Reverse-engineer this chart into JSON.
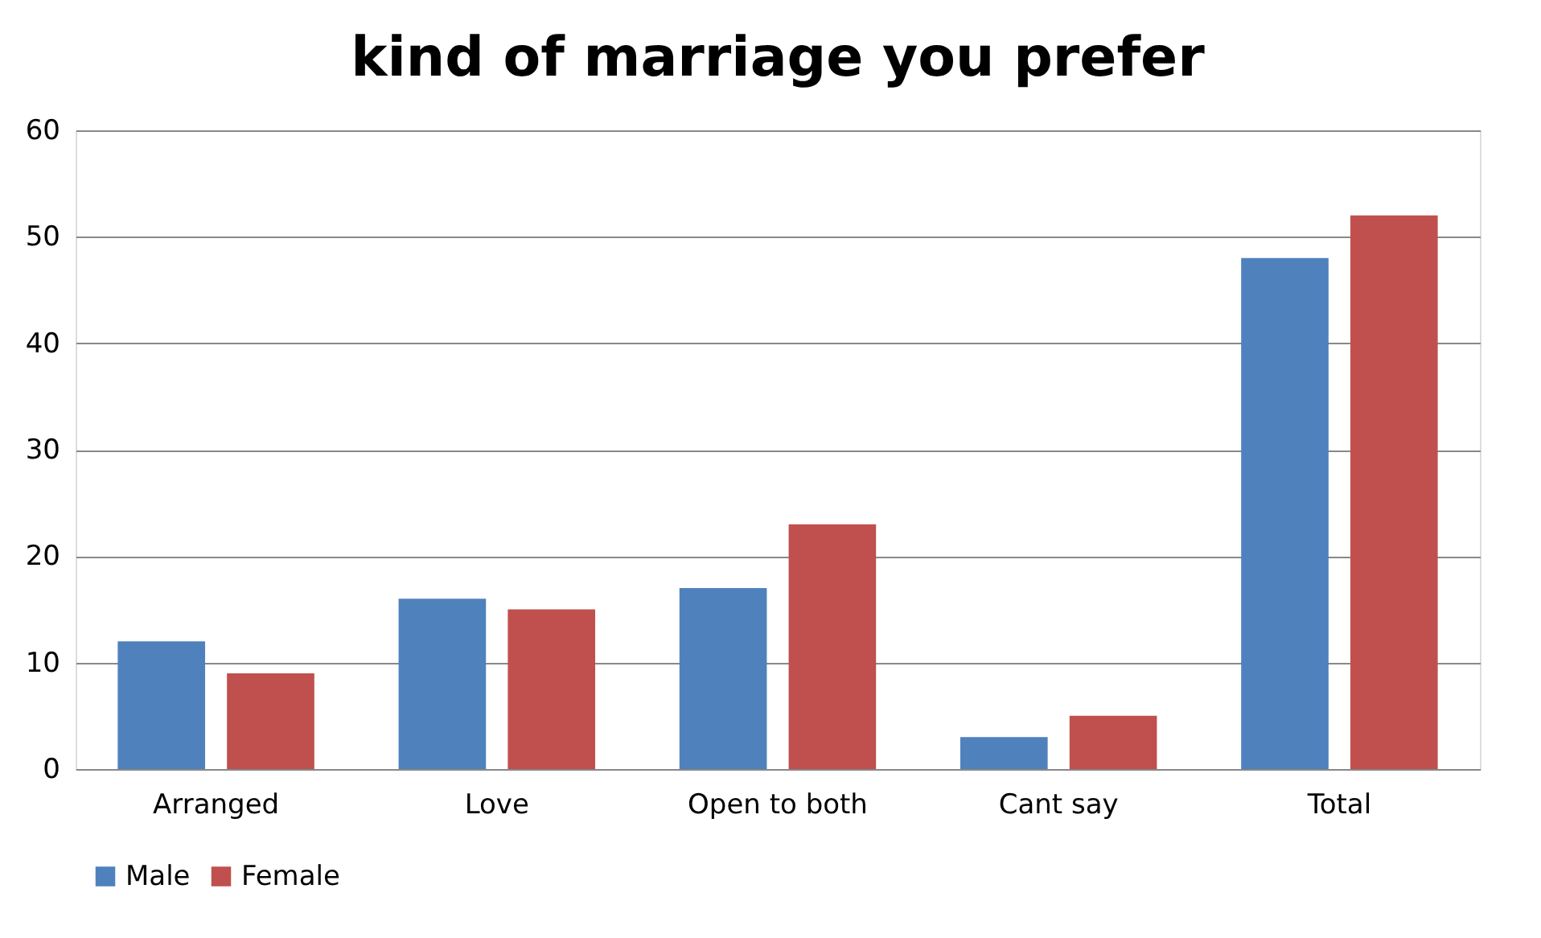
{
  "chart_data": {
    "type": "bar",
    "title": "kind of marriage  you prefer",
    "categories": [
      "Arranged",
      "Love",
      "Open to both",
      "Cant say",
      "Total"
    ],
    "series": [
      {
        "name": "Male",
        "color": "#4f81bd",
        "values": [
          12,
          16,
          17,
          3,
          48
        ]
      },
      {
        "name": "Female",
        "color": "#c0504d",
        "values": [
          9,
          15,
          23,
          5,
          52
        ]
      }
    ],
    "ylim": [
      0,
      60
    ],
    "yticks": [
      0,
      10,
      20,
      30,
      40,
      50,
      60
    ],
    "grid": "y",
    "legend": "bottom"
  }
}
